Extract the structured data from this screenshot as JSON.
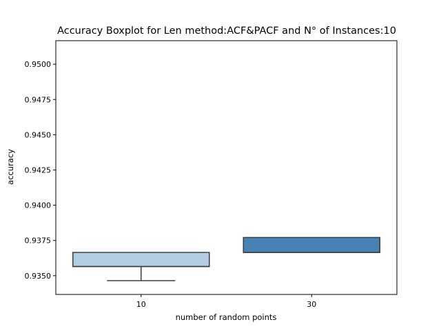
{
  "chart_data": {
    "type": "box",
    "title": "Accuracy Boxplot for Len method:ACF&PACF and N° of Instances:10",
    "xlabel": "number of random points",
    "ylabel": "accuracy",
    "ylim": [
      0.93367,
      0.95167
    ],
    "yticks": [
      0.935,
      0.9375,
      0.94,
      0.9425,
      0.945,
      0.9475,
      0.95
    ],
    "ytick_labels": [
      "0.9350",
      "0.9375",
      "0.9400",
      "0.9425",
      "0.9450",
      "0.9475",
      "0.9500"
    ],
    "categories": [
      "10",
      "30"
    ],
    "boxes": [
      {
        "category": "10",
        "color": "#b3cde3",
        "whisker_low": 0.93465,
        "q1": 0.93565,
        "median": 0.93565,
        "q3": 0.93665,
        "whisker_high": 0.93665
      },
      {
        "category": "30",
        "color": "#4682b4",
        "whisker_low": 0.93665,
        "q1": 0.93665,
        "median": 0.93665,
        "q3": 0.93771,
        "whisker_high": 0.93771
      }
    ],
    "grid": false,
    "legend": "none"
  }
}
